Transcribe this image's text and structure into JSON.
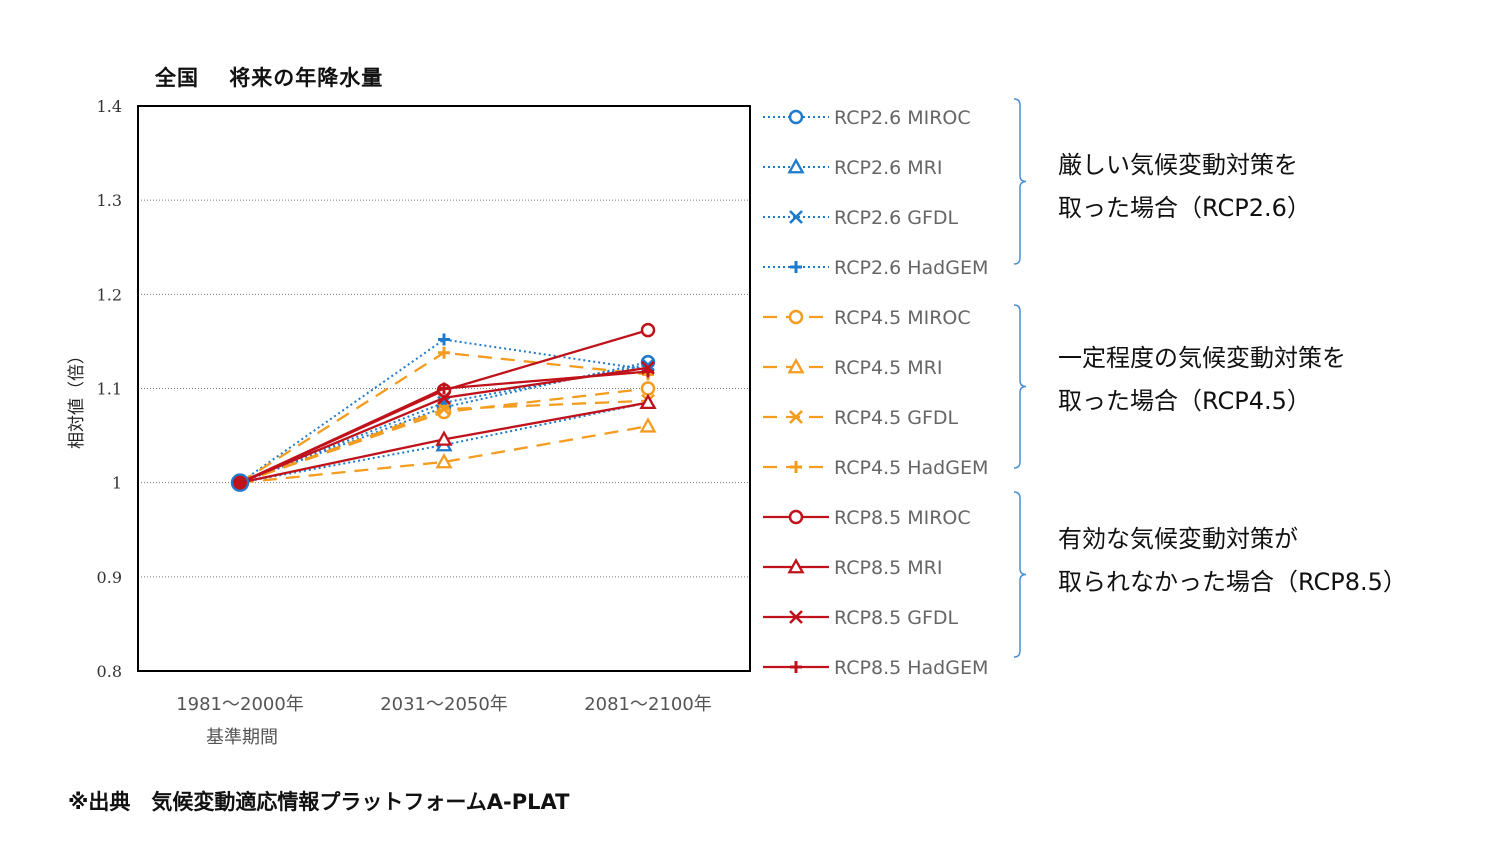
{
  "title": "全国　 将来の年降水量",
  "note": "※出典　気候変動適応情報プラットフォームA-PLAT",
  "groups": [
    {
      "line1": "厳しい気候変動対策を",
      "line2": "取った場合（RCP2.6）"
    },
    {
      "line1": "一定程度の気候変動対策を",
      "line2": "取った場合（RCP4.5）"
    },
    {
      "line1": "有効な気候変動対策が",
      "line2": "取られなかった場合（RCP8.5）"
    }
  ],
  "chart_data": {
    "type": "line",
    "title": "全国　 将来の年降水量",
    "ylabel": "相対値（倍）",
    "xlabel_sub": "基準期間",
    "categories": [
      "1981～2000年",
      "2031～2050年",
      "2081～2100年"
    ],
    "yticks": [
      "1.4",
      "1.3",
      "1.2",
      "1.1",
      "1",
      "0.9",
      "0.8"
    ],
    "ylim": [
      0.8,
      1.4
    ],
    "grid": true,
    "legend_position": "right",
    "series": [
      {
        "name": "RCP2.6 MIROC",
        "values": [
          1,
          1.08,
          1.128
        ],
        "color": "#1f7acb",
        "dash": "dot",
        "marker": "circle"
      },
      {
        "name": "RCP2.6 MRI",
        "values": [
          1,
          1.04,
          1.085
        ],
        "color": "#1f7acb",
        "dash": "dot",
        "marker": "triangle"
      },
      {
        "name": "RCP2.6 GFDL",
        "values": [
          1,
          1.085,
          1.125
        ],
        "color": "#1f7acb",
        "dash": "dot",
        "marker": "x"
      },
      {
        "name": "RCP2.6 HadGEM",
        "values": [
          1,
          1.152,
          1.12
        ],
        "color": "#1f7acb",
        "dash": "dot",
        "marker": "plus"
      },
      {
        "name": "RCP4.5 MIROC",
        "values": [
          1,
          1.075,
          1.1
        ],
        "color": "#f39c1e",
        "dash": "dash",
        "marker": "circle"
      },
      {
        "name": "RCP4.5 MRI",
        "values": [
          1,
          1.022,
          1.06
        ],
        "color": "#f39c1e",
        "dash": "dash",
        "marker": "triangle"
      },
      {
        "name": "RCP4.5 GFDL",
        "values": [
          1,
          1.078,
          1.087
        ],
        "color": "#f39c1e",
        "dash": "dash",
        "marker": "x"
      },
      {
        "name": "RCP4.5 HadGEM",
        "values": [
          1,
          1.138,
          1.115
        ],
        "color": "#f39c1e",
        "dash": "dash",
        "marker": "plus"
      },
      {
        "name": "RCP8.5 MIROC",
        "values": [
          1,
          1.098,
          1.162
        ],
        "color": "#c0121b",
        "dash": "solid",
        "marker": "circle"
      },
      {
        "name": "RCP8.5 MRI",
        "values": [
          1,
          1.046,
          1.085
        ],
        "color": "#c0121b",
        "dash": "solid",
        "marker": "triangle"
      },
      {
        "name": "RCP8.5 GFDL",
        "values": [
          1,
          1.09,
          1.122
        ],
        "color": "#c0121b",
        "dash": "solid",
        "marker": "x"
      },
      {
        "name": "RCP8.5 HadGEM",
        "values": [
          1,
          1.1,
          1.118
        ],
        "color": "#c0121b",
        "dash": "solid",
        "marker": "plus"
      }
    ]
  }
}
